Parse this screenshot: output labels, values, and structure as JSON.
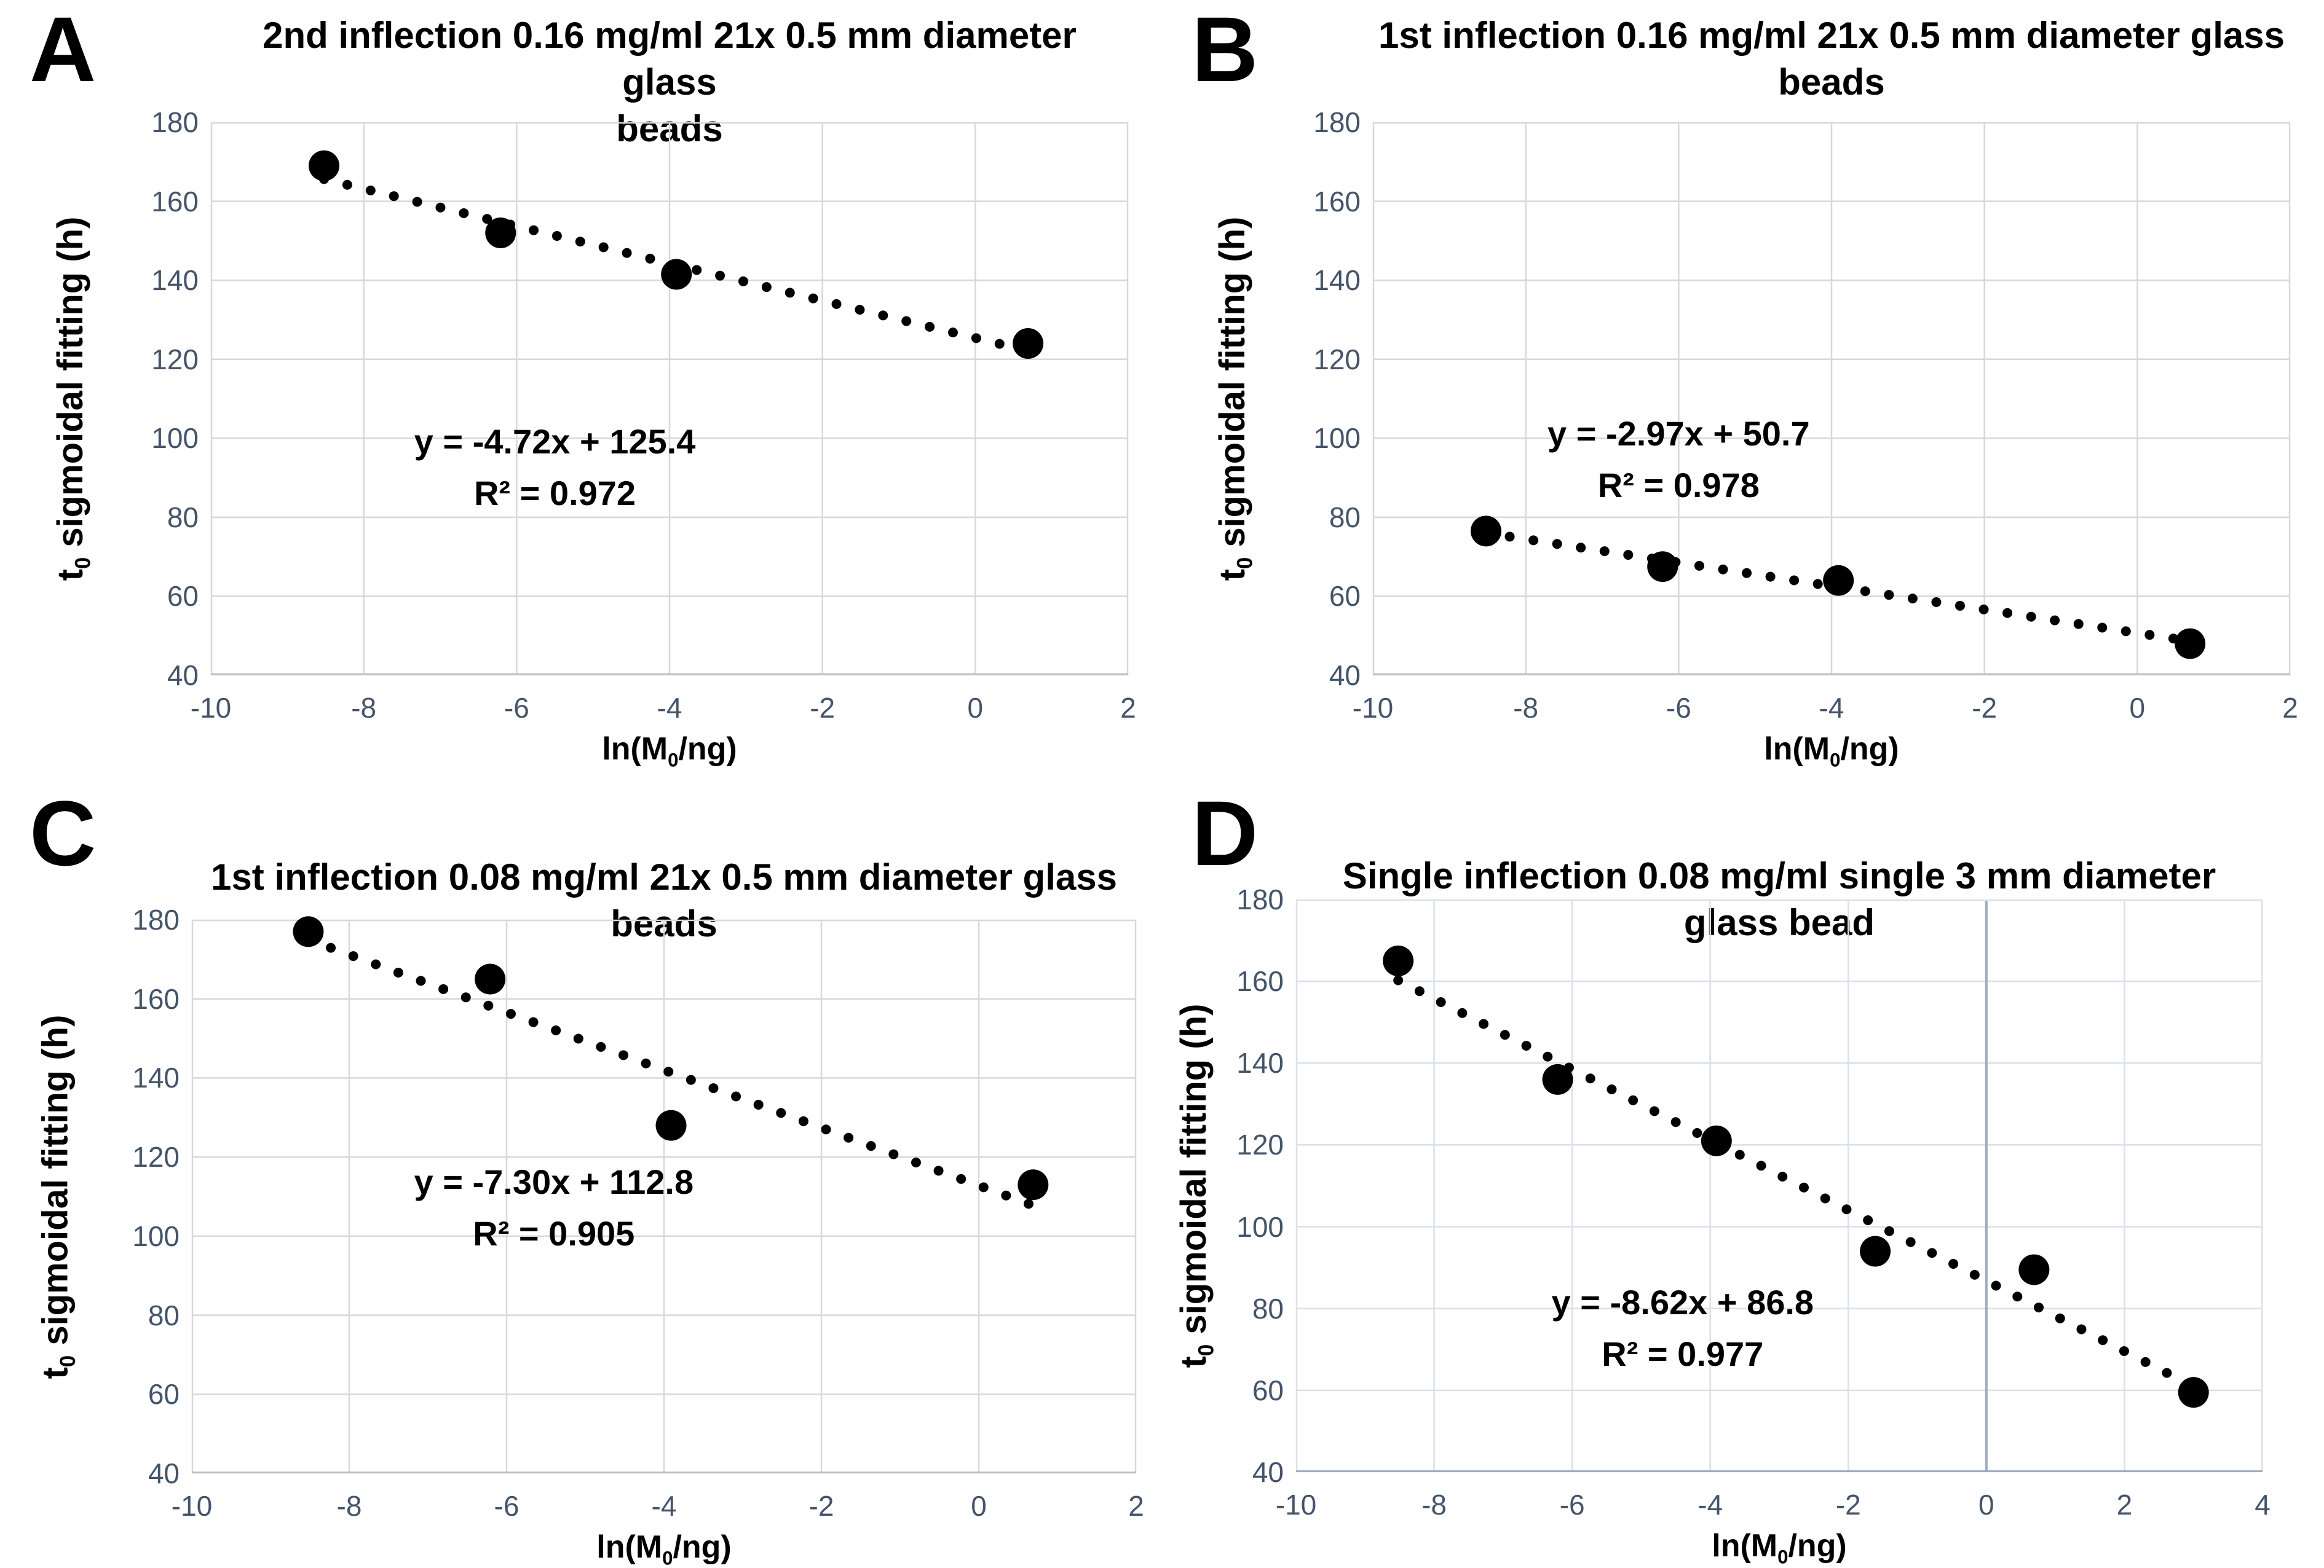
{
  "figure": {
    "background": "#ffffff",
    "title_color": "#000000",
    "tick_label_color": "#44546A",
    "marker_color": "#000000",
    "trendline_color": "#000000",
    "xlabel": {
      "pre": "ln(M",
      "sub": "0",
      "post": "/ng)"
    },
    "ylabel": {
      "pre": "t",
      "sub": "0",
      "post": " sigmoidal fitting (h)"
    }
  },
  "chart_data": [
    {
      "type": "scatter",
      "panel_letter": "A",
      "title": "2nd inflection 0.16 mg/ml 21x 0.5 mm diameter glass beads",
      "title_lines": [
        "2nd inflection 0.16 mg/ml 21x 0.5 mm diameter glass",
        "beads"
      ],
      "xlabel": "ln(M0/ng)",
      "ylabel": "t0 sigmoidal fitting (h)",
      "xlim": [
        -10,
        2
      ],
      "ylim": [
        40,
        180
      ],
      "x_tick_step": 2,
      "y_tick_step": 20,
      "grid": true,
      "legend_position": "none",
      "points": [
        {
          "x": -8.52,
          "y": 169
        },
        {
          "x": -6.21,
          "y": 152
        },
        {
          "x": -3.91,
          "y": 141.5
        },
        {
          "x": 0.69,
          "y": 124
        }
      ],
      "trendline": {
        "style": "dotted",
        "slope": -4.72,
        "intercept": 125.4,
        "x_start": -8.52,
        "x_end": 0.69
      },
      "equation": "y = -4.72x + 125.4",
      "r_squared": "R² = 0.972",
      "annotation_center": {
        "x": -5.5,
        "y": 93
      },
      "grid_color": "#D8D8D8",
      "axis_color": "#C0C0C0",
      "zero_line": false
    },
    {
      "type": "scatter",
      "panel_letter": "B",
      "title": "1st inflection 0.16 mg/ml 21x 0.5 mm diameter glass beads",
      "title_lines": [
        "1st inflection 0.16 mg/ml 21x 0.5 mm diameter glass",
        "beads"
      ],
      "xlabel": "ln(M0/ng)",
      "ylabel": "t0 sigmoidal fitting (h)",
      "xlim": [
        -10,
        2
      ],
      "ylim": [
        40,
        180
      ],
      "x_tick_step": 2,
      "y_tick_step": 20,
      "grid": true,
      "legend_position": "none",
      "points": [
        {
          "x": -8.52,
          "y": 76.5
        },
        {
          "x": -6.21,
          "y": 67.5
        },
        {
          "x": -3.91,
          "y": 64
        },
        {
          "x": 0.69,
          "y": 48
        }
      ],
      "trendline": {
        "style": "dotted",
        "slope": -2.97,
        "intercept": 50.7,
        "x_start": -8.52,
        "x_end": 0.69
      },
      "equation": "y = -2.97x + 50.7",
      "r_squared": "R² = 0.978",
      "annotation_center": {
        "x": -6.0,
        "y": 95
      },
      "grid_color": "#D8D8D8",
      "axis_color": "#C0C0C0",
      "zero_line": false
    },
    {
      "type": "scatter",
      "panel_letter": "C",
      "title": "1st inflection 0.08 mg/ml 21x 0.5 mm diameter glass beads",
      "title_lines": [
        "1st inflection 0.08 mg/ml 21x 0.5 mm diameter glass",
        "beads"
      ],
      "xlabel": "ln(M0/ng)",
      "ylabel": "t0 sigmoidal fitting (h)",
      "xlim": [
        -10,
        2
      ],
      "ylim": [
        40,
        180
      ],
      "x_tick_step": 2,
      "y_tick_step": 20,
      "grid": true,
      "legend_position": "none",
      "points": [
        {
          "x": -8.52,
          "y": 177
        },
        {
          "x": -6.21,
          "y": 165
        },
        {
          "x": -3.91,
          "y": 128
        },
        {
          "x": 0.69,
          "y": 113
        }
      ],
      "trendline": {
        "style": "dotted",
        "slope": -7.3,
        "intercept": 112.8,
        "x_start": -8.52,
        "x_end": 0.69
      },
      "equation": "y = -7.30x + 112.8",
      "r_squared": "R² = 0.905",
      "annotation_center": {
        "x": -5.4,
        "y": 107.5
      },
      "grid_color": "#D8D8D8",
      "axis_color": "#C0C0C0",
      "zero_line": false
    },
    {
      "type": "scatter",
      "panel_letter": "D",
      "title": "Single inflection 0.08 mg/ml single 3 mm diameter glass bead",
      "title_lines": [
        "Single inflection 0.08 mg/ml single 3 mm diameter",
        "glass bead"
      ],
      "xlabel": "ln(M0/ng)",
      "ylabel": "t0 sigmoidal fitting (h)",
      "xlim": [
        -10,
        4
      ],
      "ylim": [
        40,
        180
      ],
      "x_tick_step": 2,
      "y_tick_step": 20,
      "grid": true,
      "legend_position": "none",
      "points": [
        {
          "x": -8.52,
          "y": 165
        },
        {
          "x": -6.21,
          "y": 136
        },
        {
          "x": -3.91,
          "y": 121
        },
        {
          "x": -1.61,
          "y": 94
        },
        {
          "x": 0.69,
          "y": 89.5
        },
        {
          "x": 3.0,
          "y": 59.5
        }
      ],
      "trendline": {
        "style": "dotted",
        "slope": -8.62,
        "intercept": 86.8,
        "x_start": -8.52,
        "x_end": 3.0
      },
      "equation": "y = -8.62x + 86.8",
      "r_squared": "R² = 0.977",
      "annotation_center": {
        "x": -4.4,
        "y": 75.5
      },
      "grid_color": "#D9E0EA",
      "axis_color": "#9FACBF",
      "zero_line": true
    }
  ]
}
